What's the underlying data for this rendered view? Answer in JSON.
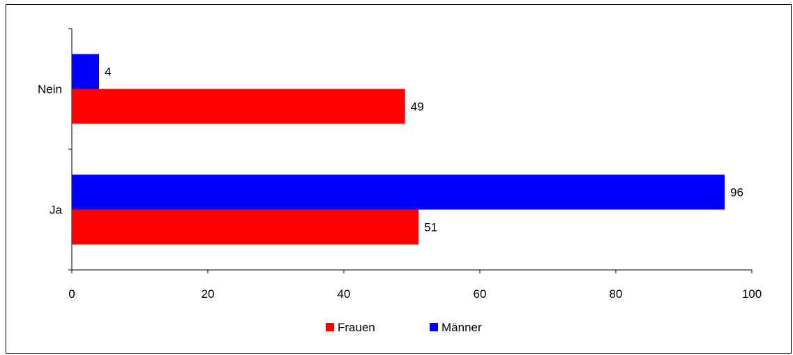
{
  "chart_data": {
    "type": "bar",
    "orientation": "horizontal",
    "categories": [
      "Nein",
      "Ja"
    ],
    "series": [
      {
        "name": "Männer",
        "color": "#0000ff",
        "values": [
          4,
          96
        ]
      },
      {
        "name": "Frauen",
        "color": "#ff0000",
        "values": [
          49,
          51
        ]
      }
    ],
    "xlim": [
      0,
      100
    ],
    "xticks": [
      "0",
      "20",
      "40",
      "60",
      "80",
      "100"
    ],
    "grid": false,
    "legend": {
      "placement": "bottom",
      "entries": [
        {
          "label": "Frauen",
          "color": "#ff0000"
        },
        {
          "label": "Männer",
          "color": "#0000ff"
        }
      ]
    }
  }
}
